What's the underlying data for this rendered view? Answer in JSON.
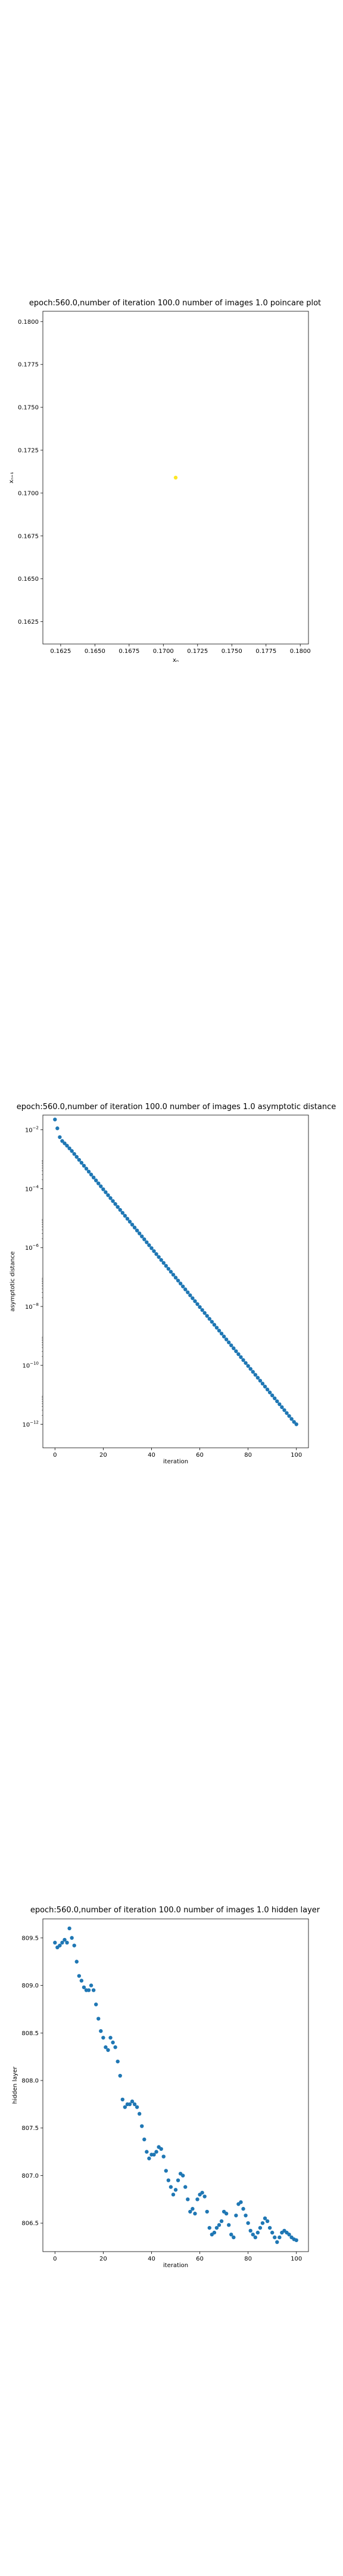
{
  "chart_data": [
    {
      "type": "scatter",
      "title": "epoch:560.0,number of iteration 100.0 number of images 1.0 poincare plot",
      "xlabel": "xₙ",
      "ylabel": "xₙ₊₁",
      "xlim": [
        0.1612,
        0.1806
      ],
      "ylim": [
        0.1612,
        0.1806
      ],
      "x_ticks": [
        0.1625,
        0.165,
        0.1675,
        0.17,
        0.1725,
        0.175,
        0.1775,
        0.18
      ],
      "x_tick_labels": [
        "0.1625",
        "0.1650",
        "0.1675",
        "0.1700",
        "0.1725",
        "0.1750",
        "0.1775",
        "0.1800"
      ],
      "y_ticks": [
        0.1625,
        0.165,
        0.1675,
        0.17,
        0.1725,
        0.175,
        0.1775,
        0.18
      ],
      "y_tick_labels": [
        "0.1625",
        "0.1650",
        "0.1675",
        "0.1700",
        "0.1725",
        "0.1750",
        "0.1775",
        "0.1800"
      ],
      "point_color": "#fde725",
      "points": [
        [
          0.1709,
          0.1709
        ]
      ]
    },
    {
      "type": "scatter",
      "title": "epoch:560.0,number of iteration 100.0  number of images 1.0 asymptotic distance",
      "xlabel": "iteration",
      "ylabel": "asymptotic distance",
      "y_scale": "log",
      "xlim": [
        -5,
        105
      ],
      "ylim_log10": [
        -12.8,
        -1.5
      ],
      "x_ticks": [
        0,
        20,
        40,
        60,
        80,
        100
      ],
      "x_tick_labels": [
        "0",
        "20",
        "40",
        "60",
        "80",
        "100"
      ],
      "y_ticks_log10": [
        -12,
        -10,
        -8,
        -6,
        -4,
        -2
      ],
      "y_tick_base": "10",
      "y_tick_exponents": [
        "−12",
        "−10",
        "−8",
        "−6",
        "−4",
        "−2"
      ],
      "point_color": "#1f77b4",
      "note_values": "log10 of asymptotic distance per iteration",
      "log10_values": [
        -1.65,
        -1.95,
        -2.25,
        -2.38,
        -2.46,
        -2.54,
        -2.63,
        -2.72,
        -2.82,
        -2.92,
        -3.02,
        -3.12,
        -3.22,
        -3.32,
        -3.42,
        -3.52,
        -3.62,
        -3.72,
        -3.82,
        -3.92,
        -4.02,
        -4.12,
        -4.22,
        -4.32,
        -4.42,
        -4.52,
        -4.62,
        -4.72,
        -4.82,
        -4.92,
        -5.02,
        -5.12,
        -5.22,
        -5.32,
        -5.42,
        -5.52,
        -5.62,
        -5.72,
        -5.82,
        -5.92,
        -6.02,
        -6.12,
        -6.22,
        -6.32,
        -6.42,
        -6.52,
        -6.62,
        -6.72,
        -6.82,
        -6.92,
        -7.02,
        -7.12,
        -7.22,
        -7.32,
        -7.42,
        -7.52,
        -7.62,
        -7.72,
        -7.82,
        -7.92,
        -8.02,
        -8.12,
        -8.22,
        -8.32,
        -8.42,
        -8.52,
        -8.62,
        -8.72,
        -8.82,
        -8.92,
        -9.02,
        -9.12,
        -9.22,
        -9.32,
        -9.42,
        -9.52,
        -9.62,
        -9.72,
        -9.82,
        -9.92,
        -10.02,
        -10.12,
        -10.22,
        -10.32,
        -10.42,
        -10.52,
        -10.62,
        -10.72,
        -10.82,
        -10.92,
        -11.02,
        -11.12,
        -11.22,
        -11.32,
        -11.42,
        -11.52,
        -11.62,
        -11.72,
        -11.82,
        -11.92,
        -12.0
      ]
    },
    {
      "type": "scatter",
      "title": "epoch:560.0,number of iteration 100.0  number of images 1.0 hidden layer",
      "xlabel": "iteration",
      "ylabel": "hidden layer",
      "xlim": [
        -5,
        105
      ],
      "ylim": [
        806.2,
        809.7
      ],
      "x_ticks": [
        0,
        20,
        40,
        60,
        80,
        100
      ],
      "x_tick_labels": [
        "0",
        "20",
        "40",
        "60",
        "80",
        "100"
      ],
      "y_ticks": [
        806.5,
        807.0,
        807.5,
        808.0,
        808.5,
        809.0,
        809.5
      ],
      "y_tick_labels": [
        "806.5",
        "807.0",
        "807.5",
        "808.0",
        "808.5",
        "809.0",
        "809.5"
      ],
      "point_color": "#1f77b4",
      "values": [
        809.45,
        809.4,
        809.42,
        809.45,
        809.48,
        809.45,
        809.6,
        809.5,
        809.42,
        809.25,
        809.1,
        809.05,
        808.98,
        808.95,
        808.95,
        809.0,
        808.95,
        808.8,
        808.65,
        808.52,
        808.45,
        808.35,
        808.32,
        808.45,
        808.4,
        808.35,
        808.2,
        808.05,
        807.8,
        807.72,
        807.75,
        807.75,
        807.78,
        807.75,
        807.72,
        807.65,
        807.52,
        807.38,
        807.25,
        807.18,
        807.22,
        807.22,
        807.25,
        807.3,
        807.28,
        807.2,
        807.05,
        806.95,
        806.88,
        806.8,
        806.85,
        806.95,
        807.02,
        807.0,
        806.88,
        806.75,
        806.62,
        806.65,
        806.6,
        806.75,
        806.8,
        806.82,
        806.78,
        806.62,
        806.45,
        806.38,
        806.4,
        806.45,
        806.48,
        806.52,
        806.62,
        806.6,
        806.48,
        806.38,
        806.35,
        806.58,
        806.7,
        806.72,
        806.65,
        806.58,
        806.5,
        806.42,
        806.38,
        806.35,
        806.4,
        806.45,
        806.5,
        806.55,
        806.52,
        806.45,
        806.4,
        806.35,
        806.3,
        806.35,
        806.4,
        806.42,
        806.4,
        806.38,
        806.35,
        806.33,
        806.32
      ]
    }
  ]
}
